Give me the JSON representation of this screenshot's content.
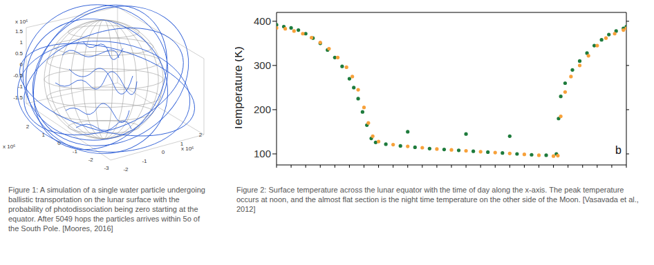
{
  "figure1": {
    "type": "3d_trajectory",
    "z_axis": {
      "multiplier": "x 10⁶",
      "ticks": [
        1.5,
        1,
        0.5,
        0,
        -0.5,
        -1,
        -1.5
      ]
    },
    "x_axis": {
      "multiplier": "x 10⁶",
      "ticks": [
        2,
        1,
        0,
        -1,
        -2,
        -3
      ]
    },
    "y_axis": {
      "multiplier": "x 10⁶",
      "ticks": [
        2,
        1,
        0,
        -1,
        -2
      ]
    },
    "caption": "Figure 1: A simulation of a single water particle undergoing ballistic transportation on the lunar surface with the probability of photodissociation being zero starting at the equator. After 5049 hops the particles arrives within 5o of the South Pole. [Moores, 2016]"
  },
  "chart_data": {
    "type": "scatter",
    "ylabel": "Temperature (K)",
    "annotation": "b",
    "xlim": [
      0,
      24
    ],
    "xticks": [
      0,
      1,
      2,
      3,
      4,
      5,
      6,
      7,
      8,
      9,
      10,
      11,
      12,
      13,
      14,
      15,
      16,
      17,
      18,
      19,
      20,
      21,
      22,
      23,
      24
    ],
    "ylim": [
      75,
      420
    ],
    "yticks": [
      100,
      200,
      300,
      400
    ],
    "tick_labels": "y",
    "grid": false,
    "series": [
      {
        "color": "#1e7b3c",
        "x": [
          0,
          0.5,
          1,
          1.5,
          2,
          2.5,
          3,
          3.5,
          4,
          4.5,
          5,
          5.3,
          5.6,
          5.9,
          6.2,
          6.5,
          6.8,
          7.5,
          8.5,
          9,
          9.5,
          10.5,
          11.5,
          12.5,
          13,
          13.5,
          14.5,
          15.5,
          16,
          16.5,
          17.5,
          18.5,
          19.2,
          19.35,
          19.5,
          19.8,
          20.3,
          20.8,
          21.3,
          21.8,
          22.3,
          22.8,
          23.3,
          23.8,
          24
        ],
        "values": [
          392,
          388,
          385,
          380,
          372,
          362,
          350,
          335,
          318,
          298,
          270,
          250,
          225,
          195,
          165,
          135,
          126,
          122,
          118,
          150,
          115,
          112,
          110,
          108,
          145,
          106,
          104,
          102,
          140,
          100,
          98,
          97,
          100,
          180,
          230,
          260,
          290,
          310,
          328,
          345,
          358,
          370,
          378,
          384,
          388
        ]
      },
      {
        "color": "#f7a13a",
        "x": [
          0,
          0.6,
          1.2,
          1.8,
          2.4,
          3,
          3.6,
          4.2,
          4.8,
          5.2,
          5.6,
          6,
          6.3,
          6.6,
          7,
          8,
          9,
          10,
          11,
          12,
          13,
          14,
          15,
          16,
          17,
          18,
          19,
          19.3,
          19.5,
          19.8,
          20.2,
          20.8,
          21.4,
          22,
          22.6,
          23.2,
          23.8,
          24
        ],
        "values": [
          385,
          383,
          378,
          372,
          363,
          352,
          338,
          318,
          296,
          275,
          245,
          205,
          170,
          140,
          128,
          121,
          117,
          114,
          111,
          109,
          107,
          105,
          103,
          101,
          99,
          97,
          95,
          96,
          185,
          240,
          275,
          300,
          322,
          345,
          362,
          372,
          380,
          384
        ]
      }
    ],
    "caption": "Figure 2: Surface temperature across the lunar equator with the time of day along the x-axis. The peak temperature occurs at noon, and the almost flat section is the night time temperature on the other side of the Moon.  [Vasavada et al., 2012]"
  }
}
